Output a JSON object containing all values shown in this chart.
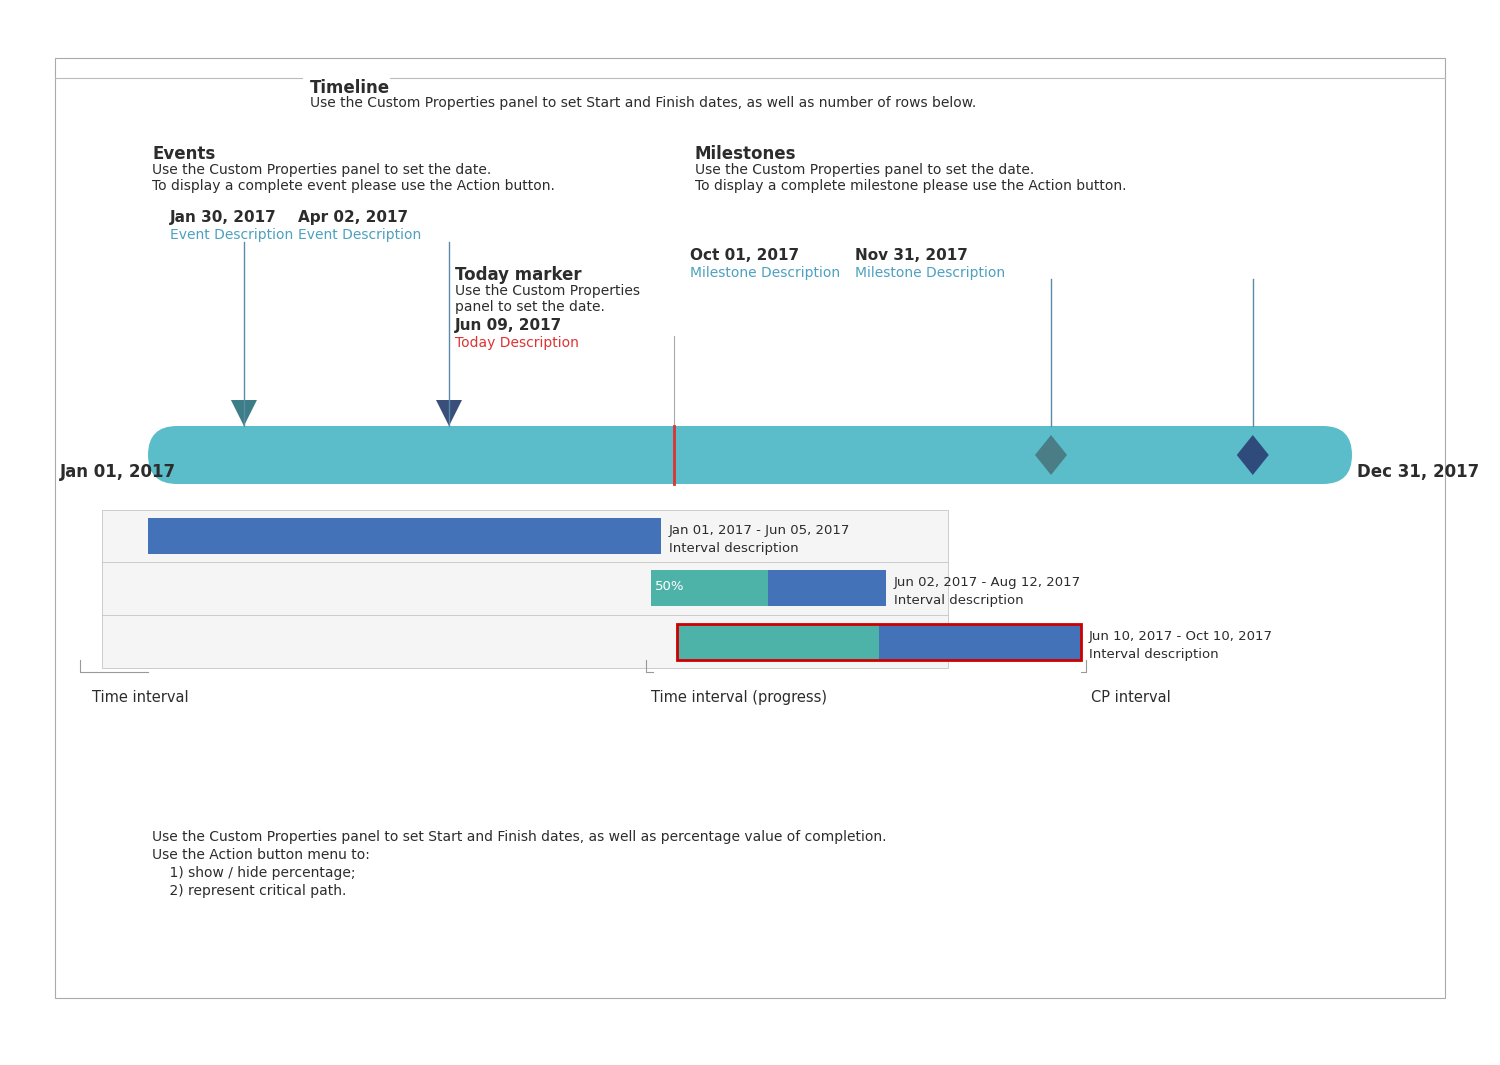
{
  "bg_color": "#ffffff",
  "text_color": "#2c2c2c",
  "title_label": "Timeline",
  "title_desc": "Use the Custom Properties panel to set Start and Finish dates, as well as number of rows below.",
  "events_label": "Events",
  "events_desc1": "Use the Custom Properties panel to set the date.",
  "events_desc2": "To display a complete event please use the Action button.",
  "milestones_label": "Milestones",
  "milestones_desc1": "Use the Custom Properties panel to set the date.",
  "milestones_desc2": "To display a complete milestone please use the Action button.",
  "today_label": "Today marker",
  "event1_date": "Jan 30, 2017",
  "event1_desc": "Event Description",
  "event2_date": "Apr 02, 2017",
  "event2_desc": "Event Description",
  "today_date": "Jun 09, 2017",
  "today_text": "Today Description",
  "milestone1_date": "Oct 01, 2017",
  "milestone1_desc": "Milestone Description",
  "milestone2_date": "Nov 31, 2017",
  "milestone2_desc": "Milestone Description",
  "timeline_start_label": "Jan 01, 2017",
  "timeline_end_label": "Dec 31, 2017",
  "timeline_color": "#5bbdca",
  "event1_tri_color": "#3d7d85",
  "event2_tri_color": "#3a4e7a",
  "milestone1_color": "#4a7d85",
  "milestone2_color": "#2f4b7c",
  "today_line_color": "#dd3333",
  "today_vline_color": "#aaaaaa",
  "interval1_dates": "Jan 01, 2017 - Jun 05, 2017",
  "interval1_desc": "Interval description",
  "interval1_color": "#4472b8",
  "interval2_dates": "Jun 02, 2017 - Aug 12, 2017",
  "interval2_desc": "Interval description",
  "interval2_teal_color": "#4db3a8",
  "interval2_blue_color": "#4472b8",
  "interval2_pct": "50%",
  "interval3_dates": "Jun 10, 2017 - Oct 10, 2017",
  "interval3_desc": "Interval description",
  "interval3_teal_color": "#4db3a8",
  "interval3_blue_color": "#4472b8",
  "cp_border_color": "#cc0000",
  "footer_line1": "Use the Custom Properties panel to set Start and Finish dates, as well as percentage value of completion.",
  "footer_line2": "Use the Action button menu to:",
  "footer_line3": "    1) show / hide percentage;",
  "footer_line4": "    2) represent critical path.",
  "label_time_interval": "Time interval",
  "label_time_interval_progress": "Time interval (progress)",
  "label_cp_interval": "CP interval",
  "link_color": "#4da0c0",
  "box_line_color": "#bbbbbb",
  "bracket_color": "#999999",
  "today_desc_line1": "Use the Custom Properties",
  "today_desc_line2": "panel to set the date."
}
